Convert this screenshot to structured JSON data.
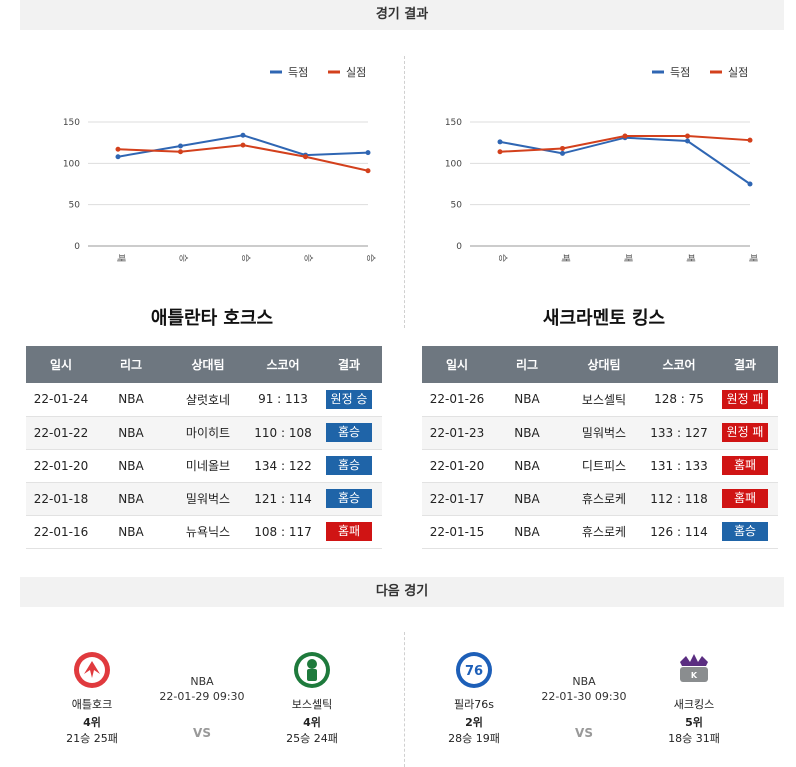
{
  "header": {
    "results_title": "경기 결과",
    "next_title": "다음 경기"
  },
  "legend": {
    "scored": "득점",
    "allowed": "실점"
  },
  "colors": {
    "scored": "#2f66b3",
    "allowed": "#d3401c",
    "win": "#1f64a8",
    "loss": "#d01414"
  },
  "chart_data": [
    {
      "type": "line",
      "categories": [
        "패",
        "승",
        "승",
        "승",
        "승"
      ],
      "ylim": [
        0,
        150
      ],
      "yticks": [
        0,
        50,
        100,
        150
      ],
      "series": [
        {
          "name": "득점",
          "values": [
            108,
            121,
            134,
            110,
            113
          ]
        },
        {
          "name": "실점",
          "values": [
            117,
            114,
            122,
            108,
            91
          ]
        }
      ],
      "legend": "top-right",
      "grid": true
    },
    {
      "type": "line",
      "categories": [
        "승",
        "패",
        "패",
        "패",
        "패"
      ],
      "ylim": [
        0,
        150
      ],
      "yticks": [
        0,
        50,
        100,
        150
      ],
      "series": [
        {
          "name": "득점",
          "values": [
            126,
            112,
            131,
            127,
            75
          ]
        },
        {
          "name": "실점",
          "values": [
            114,
            118,
            133,
            133,
            128
          ]
        }
      ],
      "legend": "top-right",
      "grid": true
    }
  ],
  "table_headers": [
    "일시",
    "리그",
    "상대팀",
    "스코어",
    "결과"
  ],
  "teams": [
    {
      "name": "애틀란타 호크스",
      "games": [
        {
          "date": "22-01-24",
          "league": "NBA",
          "opponent": "샬럿호네",
          "score": "91 : 113",
          "result": "원정 승",
          "win": true
        },
        {
          "date": "22-01-22",
          "league": "NBA",
          "opponent": "마이히트",
          "score": "110 : 108",
          "result": "홈승",
          "win": true
        },
        {
          "date": "22-01-20",
          "league": "NBA",
          "opponent": "미네올브",
          "score": "134 : 122",
          "result": "홈승",
          "win": true
        },
        {
          "date": "22-01-18",
          "league": "NBA",
          "opponent": "밀워벅스",
          "score": "121 : 114",
          "result": "홈승",
          "win": true
        },
        {
          "date": "22-01-16",
          "league": "NBA",
          "opponent": "뉴욕닉스",
          "score": "108 : 117",
          "result": "홈패",
          "win": false
        }
      ]
    },
    {
      "name": "새크라멘토 킹스",
      "games": [
        {
          "date": "22-01-26",
          "league": "NBA",
          "opponent": "보스셀틱",
          "score": "128 : 75",
          "result": "원정 패",
          "win": false
        },
        {
          "date": "22-01-23",
          "league": "NBA",
          "opponent": "밀워벅스",
          "score": "133 : 127",
          "result": "원정 패",
          "win": false
        },
        {
          "date": "22-01-20",
          "league": "NBA",
          "opponent": "디트피스",
          "score": "131 : 133",
          "result": "홈패",
          "win": false
        },
        {
          "date": "22-01-17",
          "league": "NBA",
          "opponent": "휴스로케",
          "score": "112 : 118",
          "result": "홈패",
          "win": false
        },
        {
          "date": "22-01-15",
          "league": "NBA",
          "opponent": "휴스로케",
          "score": "126 : 114",
          "result": "홈승",
          "win": true
        }
      ]
    }
  ],
  "next_games": [
    {
      "league": "NBA",
      "datetime": "22-01-29 09:30",
      "vs": "VS",
      "home": {
        "name": "애틀호크",
        "rank": "4위",
        "record": "21승 25패",
        "logo": "hawks-logo"
      },
      "away": {
        "name": "보스셀틱",
        "rank": "4위",
        "record": "25승 24패",
        "logo": "celtics-logo"
      }
    },
    {
      "league": "NBA",
      "datetime": "22-01-30 09:30",
      "vs": "VS",
      "home": {
        "name": "필라76s",
        "rank": "2위",
        "record": "28승 19패",
        "logo": "76ers-logo"
      },
      "away": {
        "name": "새크킹스",
        "rank": "5위",
        "record": "18승 31패",
        "logo": "kings-logo"
      }
    }
  ]
}
